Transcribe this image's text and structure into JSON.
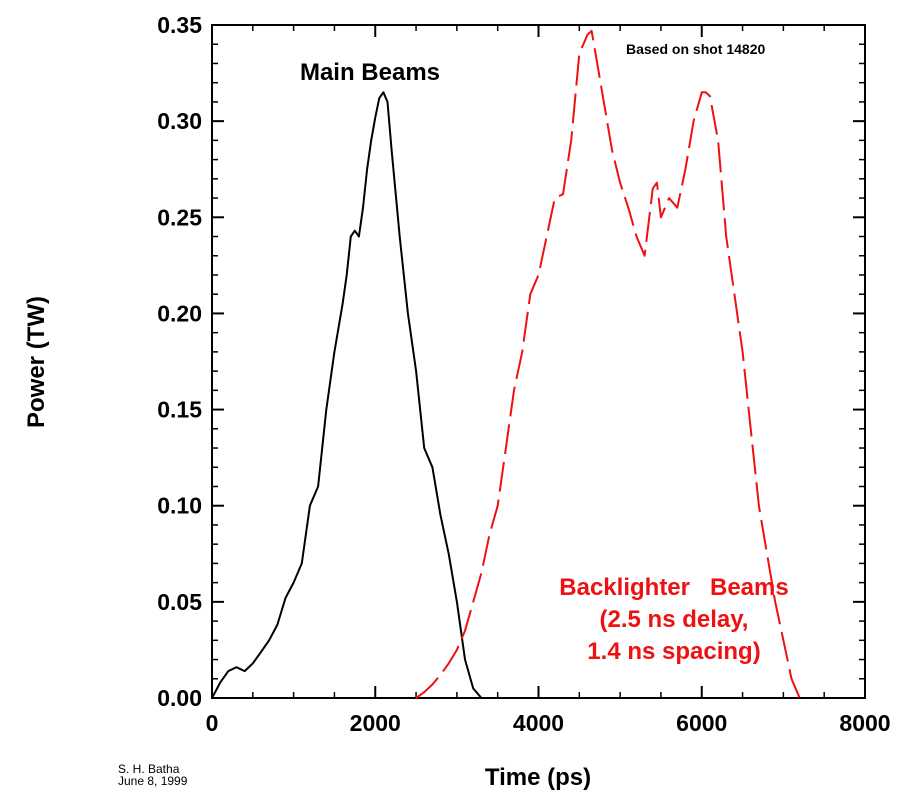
{
  "credit": {
    "author": "S. H. Batha",
    "date": "June 8, 1999"
  },
  "chart_data": {
    "type": "line",
    "xlabel": "Time (ps)",
    "ylabel": "Power (TW)",
    "xlim": [
      0,
      8000
    ],
    "ylim": [
      0,
      0.35
    ],
    "x_ticks": [
      "0",
      "2000",
      "4000",
      "6000",
      "8000"
    ],
    "y_ticks": [
      "0.00",
      "0.05",
      "0.10",
      "0.15",
      "0.20",
      "0.25",
      "0.30",
      "0.35"
    ],
    "grid": false,
    "annotations": {
      "shot": "Based on shot 14820",
      "main": "Main Beams",
      "backlighter_line1": "Backlighter   Beams",
      "backlighter_line2": "(2.5 ns delay,",
      "backlighter_line3": "1.4 ns spacing)"
    },
    "series": [
      {
        "name": "Main Beams",
        "color": "#000000",
        "style": "solid",
        "x": [
          0,
          100,
          200,
          300,
          400,
          500,
          600,
          700,
          800,
          900,
          1000,
          1100,
          1200,
          1300,
          1400,
          1500,
          1600,
          1650,
          1700,
          1750,
          1800,
          1850,
          1900,
          1950,
          2000,
          2050,
          2100,
          2150,
          2200,
          2300,
          2400,
          2500,
          2600,
          2700,
          2800,
          2900,
          3000,
          3100,
          3200,
          3300
        ],
        "y": [
          0.0,
          0.008,
          0.014,
          0.016,
          0.014,
          0.018,
          0.024,
          0.03,
          0.038,
          0.052,
          0.06,
          0.07,
          0.1,
          0.11,
          0.15,
          0.18,
          0.205,
          0.22,
          0.24,
          0.243,
          0.24,
          0.255,
          0.275,
          0.29,
          0.302,
          0.312,
          0.315,
          0.31,
          0.285,
          0.24,
          0.2,
          0.17,
          0.13,
          0.12,
          0.095,
          0.075,
          0.05,
          0.02,
          0.005,
          0.0
        ]
      },
      {
        "name": "Backlighter   Beams",
        "color": "#ee1111",
        "style": "dashed",
        "x": [
          2500,
          2600,
          2700,
          2800,
          2900,
          3000,
          3100,
          3200,
          3300,
          3400,
          3500,
          3600,
          3700,
          3800,
          3900,
          4000,
          4100,
          4200,
          4300,
          4400,
          4500,
          4600,
          4650,
          4700,
          4800,
          4900,
          5000,
          5100,
          5200,
          5300,
          5400,
          5450,
          5500,
          5600,
          5700,
          5800,
          5900,
          6000,
          6050,
          6100,
          6200,
          6300,
          6400,
          6500,
          6600,
          6700,
          6800,
          6900,
          7000,
          7100,
          7200
        ],
        "y": [
          0.0,
          0.003,
          0.007,
          0.012,
          0.018,
          0.025,
          0.035,
          0.05,
          0.065,
          0.085,
          0.1,
          0.13,
          0.16,
          0.18,
          0.21,
          0.22,
          0.24,
          0.26,
          0.262,
          0.29,
          0.335,
          0.345,
          0.347,
          0.335,
          0.31,
          0.285,
          0.268,
          0.255,
          0.24,
          0.23,
          0.265,
          0.268,
          0.25,
          0.26,
          0.255,
          0.275,
          0.3,
          0.315,
          0.315,
          0.313,
          0.29,
          0.24,
          0.21,
          0.18,
          0.14,
          0.1,
          0.075,
          0.05,
          0.03,
          0.01,
          0.0
        ]
      }
    ]
  }
}
